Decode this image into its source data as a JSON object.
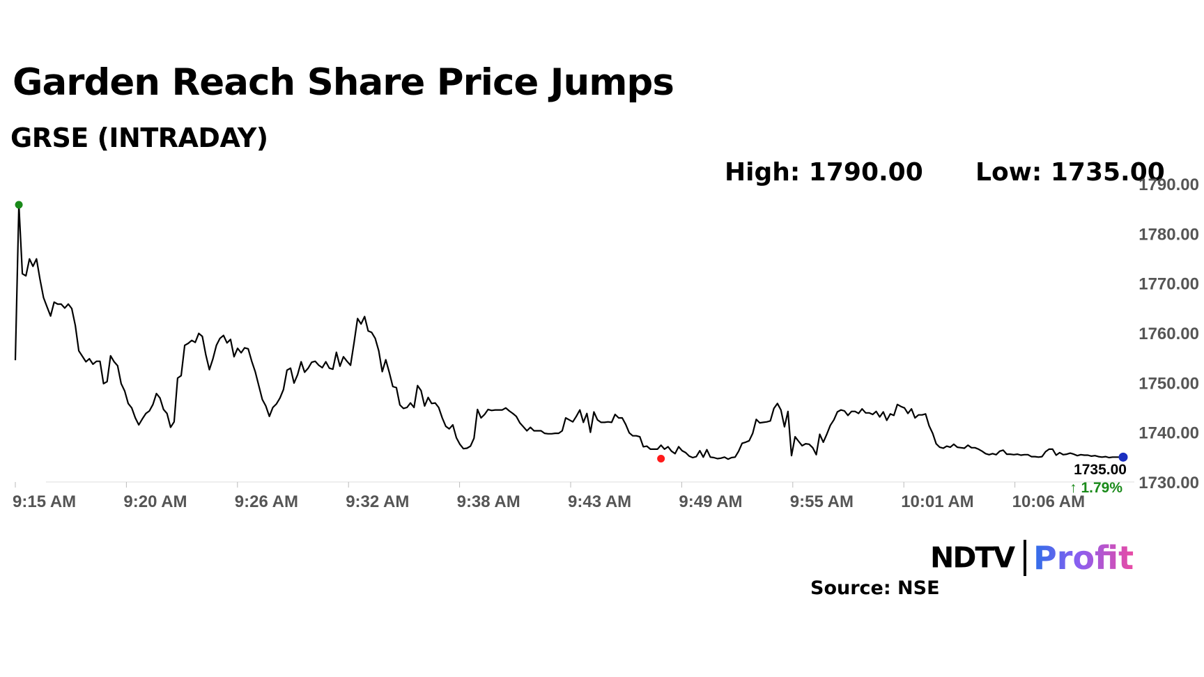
{
  "headline": "Garden Reach Share Price Jumps",
  "subheadline": "GRSE (INTRADAY)",
  "stats": {
    "high_label": "High: 1790.00",
    "low_label": "Low: 1735.00"
  },
  "logo": {
    "brand": "NDTV",
    "product": "Profit"
  },
  "source": "Source: NSE",
  "colors": {
    "line": "#000000",
    "high_marker": "#1a8a1a",
    "low_marker": "#ff1a1a",
    "last_marker": "#1a2fc0",
    "change_up": "#1a8a1a",
    "axis_text": "#555555",
    "grid_axis": "#dddddd"
  },
  "chart_data": {
    "type": "line",
    "ylim": [
      1730,
      1790
    ],
    "y_ticks": [
      "1790.00",
      "1780.00",
      "1770.00",
      "1760.00",
      "1750.00",
      "1740.00",
      "1730.00"
    ],
    "x_ticks": [
      "9:15 AM",
      "9:20 AM",
      "9:26 AM",
      "9:32 AM",
      "9:38 AM",
      "9:43 AM",
      "9:49 AM",
      "9:55 AM",
      "10:01 AM",
      "10:06 AM"
    ],
    "grid": false,
    "series": [
      {
        "values": [
          1754.5,
          1785.8,
          1771.9,
          1771.5,
          1774.9,
          1773.4,
          1774.9,
          1770.8,
          1767.1,
          1765.2,
          1763.4,
          1766.2,
          1765.8,
          1765.8,
          1765.0,
          1765.8,
          1764.9,
          1761.5,
          1756.4,
          1755.3,
          1754.2,
          1754.8,
          1753.7,
          1754.3,
          1754.3,
          1749.8,
          1750.2,
          1755.4,
          1754.2,
          1753.4,
          1749.8,
          1748.3,
          1745.8,
          1744.9,
          1742.9,
          1741.5,
          1742.7,
          1743.8,
          1744.3,
          1745.6,
          1747.8,
          1746.9,
          1744.6,
          1743.8,
          1741.0,
          1742.1,
          1750.9,
          1751.4,
          1757.5,
          1757.9,
          1758.5,
          1758.1,
          1759.9,
          1759.3,
          1755.6,
          1752.6,
          1754.8,
          1757.5,
          1758.9,
          1759.5,
          1758.0,
          1758.7,
          1755.2,
          1756.9,
          1756.0,
          1757.0,
          1756.8,
          1754.3,
          1752.2,
          1749.4,
          1746.6,
          1745.3,
          1743.2,
          1745.0,
          1745.7,
          1746.9,
          1748.6,
          1752.5,
          1752.9,
          1749.9,
          1751.6,
          1754.2,
          1752.1,
          1752.9,
          1754.1,
          1754.3,
          1753.5,
          1753.0,
          1754.2,
          1752.9,
          1752.7,
          1756.1,
          1753.3,
          1755.2,
          1754.3,
          1753.5,
          1758.0,
          1762.9,
          1761.8,
          1763.3,
          1760.4,
          1760.1,
          1758.9,
          1756.4,
          1752.2,
          1754.6,
          1752.0,
          1749.2,
          1749.0,
          1745.5,
          1744.8,
          1745.0,
          1745.9,
          1745.0,
          1749.4,
          1748.4,
          1745.3,
          1747.0,
          1745.8,
          1745.9,
          1745.0,
          1742.9,
          1741.2,
          1740.7,
          1741.5,
          1738.9,
          1737.6,
          1736.7,
          1736.8,
          1737.2,
          1738.8,
          1744.6,
          1742.9,
          1743.6,
          1744.6,
          1744.4,
          1744.5,
          1744.5,
          1744.5,
          1744.9,
          1744.3,
          1743.8,
          1743.2,
          1741.9,
          1741.1,
          1740.3,
          1741.0,
          1740.3,
          1740.3,
          1740.3,
          1739.8,
          1739.7,
          1739.7,
          1739.8,
          1739.8,
          1740.3,
          1742.9,
          1742.5,
          1742.1,
          1743.2,
          1744.5,
          1742.0,
          1743.8,
          1740.0,
          1744.1,
          1742.5,
          1742.0,
          1742.0,
          1742.1,
          1742.0,
          1743.6,
          1742.9,
          1742.9,
          1741.6,
          1739.9,
          1739.3,
          1739.3,
          1739.1,
          1737.1,
          1737.2,
          1736.6,
          1736.6,
          1736.6,
          1737.4,
          1736.6,
          1737.1,
          1736.2,
          1735.7,
          1737.1,
          1736.3,
          1735.9,
          1735.2,
          1734.9,
          1735.1,
          1736.3,
          1735.0,
          1736.5,
          1735.0,
          1734.9,
          1734.7,
          1734.8,
          1735.0,
          1734.6,
          1734.9,
          1735.0,
          1736.2,
          1737.8,
          1738.0,
          1738.3,
          1739.8,
          1742.6,
          1741.9,
          1742.0,
          1742.1,
          1742.3,
          1744.8,
          1745.8,
          1744.5,
          1741.1,
          1744.2,
          1735.3,
          1739.1,
          1738.2,
          1737.3,
          1737.7,
          1737.6,
          1736.9,
          1735.5,
          1739.6,
          1738.0,
          1739.6,
          1741.4,
          1742.5,
          1744.1,
          1744.5,
          1744.3,
          1743.4,
          1744.2,
          1744.2,
          1743.8,
          1744.7,
          1743.9,
          1743.9,
          1743.6,
          1744.2,
          1743.1,
          1744.1,
          1742.4,
          1743.7,
          1743.4,
          1745.6,
          1745.2,
          1744.9,
          1743.8,
          1744.7,
          1742.9,
          1743.5,
          1743.5,
          1743.7,
          1741.3,
          1739.8,
          1737.7,
          1737.0,
          1736.8,
          1737.2,
          1737.0,
          1737.6,
          1737.0,
          1736.9,
          1736.8,
          1737.4,
          1736.9,
          1736.9,
          1736.6,
          1736.2,
          1735.7,
          1735.5,
          1735.7,
          1735.5,
          1736.2,
          1736.4,
          1735.6,
          1735.6,
          1735.5,
          1735.6,
          1735.4,
          1735.5,
          1735.5,
          1735.1,
          1735.1,
          1735.0,
          1735.1,
          1736.1,
          1736.6,
          1736.6,
          1735.4,
          1735.9,
          1735.5,
          1735.6,
          1735.8,
          1735.6,
          1735.3,
          1735.5,
          1735.4,
          1735.4,
          1735.2,
          1735.3,
          1735.1,
          1735.0,
          1735.1,
          1734.9,
          1735.0,
          1735.0,
          1735.0,
          1734.9
        ]
      }
    ],
    "markers": {
      "high": {
        "index": 1,
        "value": 1785.8
      },
      "low": {
        "index": 183,
        "value": 1734.7
      },
      "last": {
        "value": 1735.0
      }
    },
    "last_value_label": "1735.00",
    "change_label": "↑ 1.79%"
  }
}
